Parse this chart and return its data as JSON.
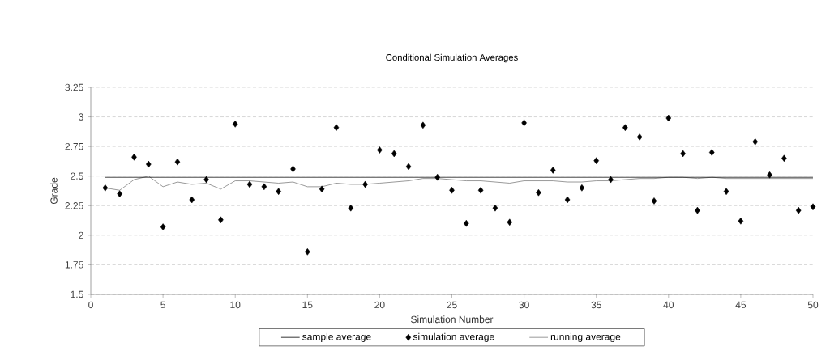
{
  "chart_data": {
    "type": "line",
    "title": "Conditional Simulation Averages",
    "xlabel": "Simulation Number",
    "ylabel": "Grade",
    "x": [
      1,
      2,
      3,
      4,
      5,
      6,
      7,
      8,
      9,
      10,
      11,
      12,
      13,
      14,
      15,
      16,
      17,
      18,
      19,
      20,
      21,
      22,
      23,
      24,
      25,
      26,
      27,
      28,
      29,
      30,
      31,
      32,
      33,
      34,
      35,
      36,
      37,
      38,
      39,
      40,
      41,
      42,
      43,
      44,
      45,
      46,
      47,
      48,
      49,
      50
    ],
    "series": [
      {
        "name": "sample average",
        "color": "#000000",
        "x": [
          1,
          50
        ],
        "values": [
          2.49,
          2.49
        ]
      },
      {
        "name": "simulation average",
        "type": "scatter",
        "marker": "diamond",
        "color": "#000000",
        "values": [
          2.4,
          2.35,
          2.66,
          2.6,
          2.07,
          2.62,
          2.3,
          2.47,
          2.13,
          2.94,
          2.43,
          2.41,
          2.37,
          2.56,
          1.86,
          2.39,
          2.91,
          2.23,
          2.43,
          2.72,
          2.69,
          2.58,
          2.93,
          2.49,
          2.38,
          2.1,
          2.38,
          2.23,
          2.11,
          2.95,
          2.36,
          2.55,
          2.3,
          2.4,
          2.63,
          2.47,
          2.91,
          2.83,
          2.29,
          2.99,
          2.69,
          2.21,
          2.7,
          2.37,
          2.12,
          2.79,
          2.51,
          2.65,
          2.21,
          2.24
        ]
      },
      {
        "name": "running average",
        "color": "#808080",
        "values": [
          2.4,
          2.38,
          2.47,
          2.5,
          2.41,
          2.45,
          2.43,
          2.44,
          2.39,
          2.46,
          2.46,
          2.45,
          2.44,
          2.45,
          2.41,
          2.41,
          2.44,
          2.43,
          2.43,
          2.44,
          2.45,
          2.46,
          2.48,
          2.48,
          2.47,
          2.46,
          2.46,
          2.45,
          2.44,
          2.46,
          2.46,
          2.46,
          2.45,
          2.45,
          2.46,
          2.46,
          2.47,
          2.48,
          2.48,
          2.49,
          2.49,
          2.48,
          2.49,
          2.48,
          2.48,
          2.48,
          2.48,
          2.48,
          2.48,
          2.48
        ]
      }
    ],
    "xlim": [
      0,
      50
    ],
    "xticks": [
      0,
      5,
      10,
      15,
      20,
      25,
      30,
      35,
      40,
      45,
      50
    ],
    "ylim": [
      1.5,
      3.25
    ],
    "yticks": [
      1.5,
      1.75,
      2,
      2.25,
      2.5,
      2.75,
      3,
      3.25
    ],
    "grid": "y",
    "legend": "bottom"
  }
}
